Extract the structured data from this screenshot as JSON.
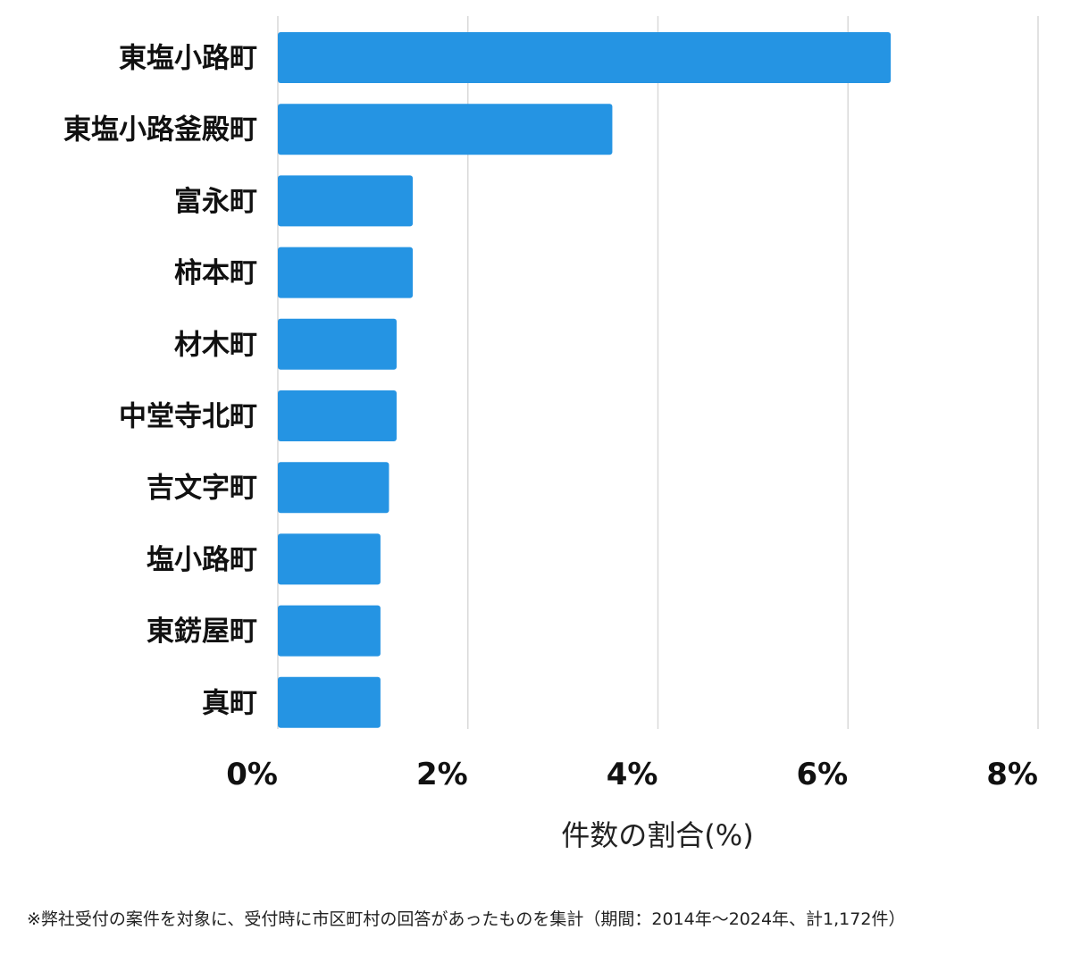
{
  "chart_data": {
    "type": "bar",
    "orientation": "horizontal",
    "categories": [
      "東塩小路町",
      "東塩小路釜殿町",
      "富永町",
      "柿本町",
      "材木町",
      "中堂寺北町",
      "吉文字町",
      "塩小路町",
      "東錺屋町",
      "真町"
    ],
    "values": [
      6.45,
      3.52,
      1.42,
      1.42,
      1.25,
      1.25,
      1.17,
      1.08,
      1.08,
      1.08
    ],
    "xlabel": "件数の割合(%)",
    "xlim": [
      0,
      8
    ],
    "xticks": [
      "0%",
      "2%",
      "4%",
      "6%",
      "8%"
    ],
    "grid": "vertical",
    "bar_color": "#2594E3",
    "grid_color": "#d9d9d9"
  },
  "footnote": "※弊社受付の案件を対象に、受付時に市区町村の回答があったものを集計（期間：2014年～2024年、計1,172件）"
}
